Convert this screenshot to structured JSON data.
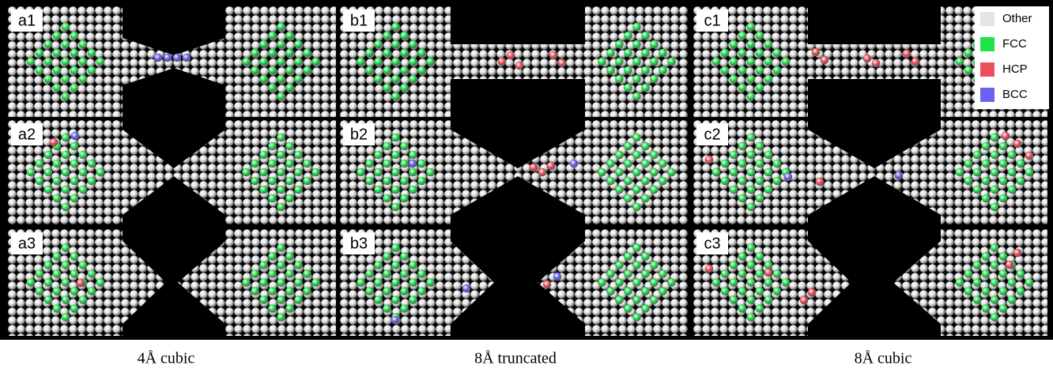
{
  "panels": [
    "a1",
    "b1",
    "c1",
    "a2",
    "b2",
    "c2",
    "a3",
    "b3",
    "c3"
  ],
  "legend": [
    {
      "label": "Other",
      "color": "#e4e4e4"
    },
    {
      "label": "FCC",
      "color": "#22e24c"
    },
    {
      "label": "HCP",
      "color": "#ee4f5c"
    },
    {
      "label": "BCC",
      "color": "#6a62f2"
    }
  ],
  "captions": [
    "4Å cubic",
    "8Å truncated",
    "8Å cubic"
  ]
}
